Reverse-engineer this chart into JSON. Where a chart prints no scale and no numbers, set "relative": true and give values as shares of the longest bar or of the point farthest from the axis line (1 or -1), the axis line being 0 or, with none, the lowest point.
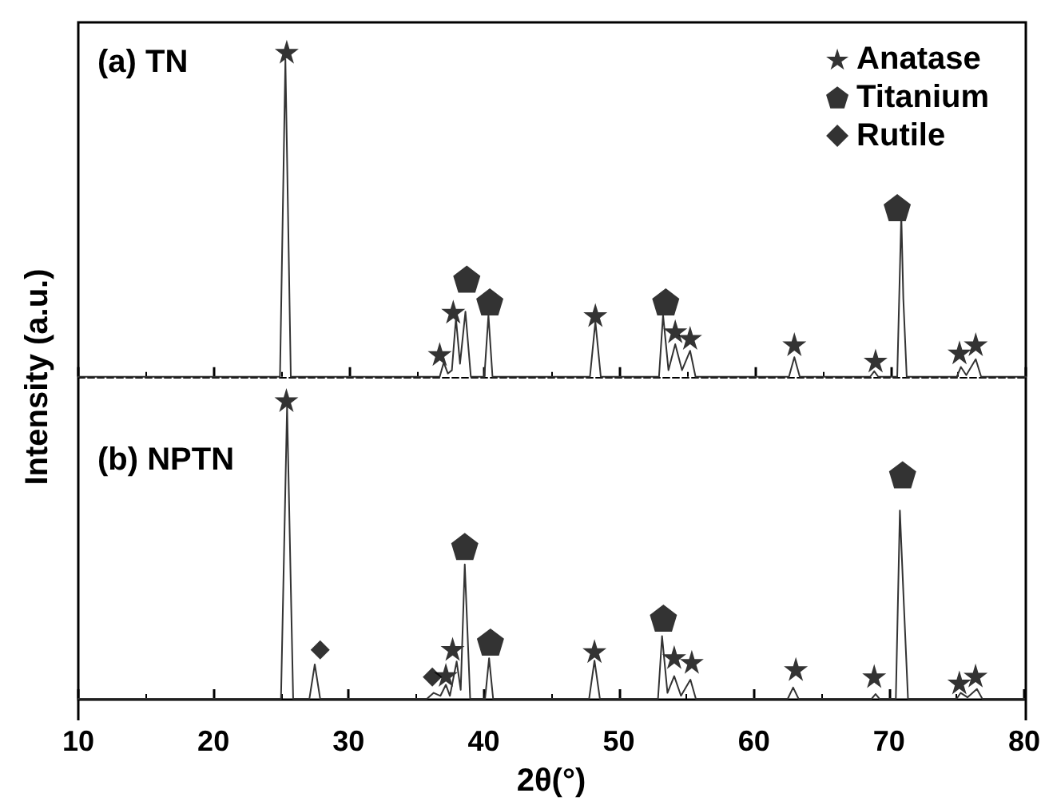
{
  "chart_data": [
    {
      "type": "line",
      "title": "(a) TN",
      "relative": true,
      "xlim": [
        10,
        80
      ],
      "xticks": [
        10,
        20,
        30,
        40,
        50,
        60,
        70,
        80
      ],
      "tick_labels": false,
      "legend": "top right",
      "grid": false,
      "series": [
        {
          "type": "line",
          "color": "#333333",
          "marker": "none",
          "x": [
            10,
            24.9,
            25.3,
            25.7,
            36.7,
            37.0,
            37.3,
            37.6,
            37.9,
            38.2,
            38.6,
            39.0,
            40.0,
            40.3,
            40.6,
            47.8,
            48.2,
            48.6,
            52.9,
            53.2,
            53.6,
            54.1,
            54.6,
            55.2,
            55.6,
            62.5,
            62.9,
            63.3,
            68.5,
            68.8,
            69.1,
            70.5,
            70.8,
            70.95,
            71.2,
            74.9,
            75.2,
            75.6,
            76.3,
            76.7,
            80
          ],
          "values": [
            0,
            0,
            0.975,
            0,
            0,
            0.044,
            0.01,
            0.02,
            0.18,
            0.04,
            0.2,
            0,
            0,
            0.19,
            0,
            0,
            0.17,
            0,
            0,
            0.19,
            0.02,
            0.1,
            0.02,
            0.08,
            0,
            0,
            0.06,
            0,
            0,
            0.017,
            0,
            0,
            0.5,
            0.24,
            0,
            0,
            0.03,
            0.005,
            0.054,
            0,
            0
          ]
        },
        {
          "type": "scatter",
          "name": "Anatase",
          "color": "#000000",
          "marker": "star",
          "x": [
            25.4,
            36.7,
            37.7,
            48.2,
            54.1,
            55.2,
            62.9,
            68.9,
            75.1,
            76.3
          ],
          "values": [
            1.0,
            0.07,
            0.2,
            0.19,
            0.14,
            0.12,
            0.1,
            0.05,
            0.075,
            0.1
          ]
        },
        {
          "type": "scatter",
          "name": "Titanium",
          "color": "#000000",
          "x": [
            38.7,
            40.4,
            53.4,
            70.5
          ],
          "values": [
            0.3,
            0.23,
            0.23,
            0.52
          ]
        },
        {
          "type": "scatter",
          "name": "Rutile",
          "color": "#000000",
          "marker": "diamond"
        }
      ]
    },
    {
      "type": "line",
      "title": "(b) NPTN",
      "relative": true,
      "xlabel": "2θ(°)",
      "ylabel": "Intensity (a.u.)",
      "xlim": [
        10,
        80
      ],
      "xticks": [
        10,
        20,
        30,
        40,
        50,
        60,
        70,
        80
      ],
      "tick_labels": "x",
      "legend": false,
      "grid": false,
      "series": [
        {
          "type": "line",
          "color": "#333333",
          "marker": "none",
          "x": [
            10,
            25.0,
            25.45,
            25.9,
            27.1,
            27.5,
            27.9,
            35.8,
            36.3,
            36.8,
            37.2,
            37.5,
            38.0,
            38.3,
            38.6,
            39.0,
            40.1,
            40.4,
            40.7,
            47.8,
            48.2,
            48.6,
            52.9,
            53.2,
            53.6,
            54.1,
            54.6,
            55.3,
            55.7,
            62.5,
            62.9,
            63.3,
            68.7,
            69.0,
            69.3,
            70.5,
            70.8,
            71.1,
            71.4,
            75.0,
            75.3,
            75.8,
            76.5,
            76.9,
            80
          ],
          "values": [
            0,
            0,
            0.98,
            0,
            0,
            0.115,
            0,
            0,
            0.02,
            0.01,
            0.047,
            0.01,
            0.125,
            0.03,
            0.45,
            0,
            0,
            0.136,
            0,
            0,
            0.128,
            0,
            0,
            0.21,
            0.02,
            0.076,
            0.01,
            0.064,
            0,
            0,
            0.038,
            0,
            0,
            0.016,
            0,
            0,
            0.63,
            0.31,
            0,
            0,
            0.02,
            0.005,
            0.033,
            0,
            0
          ]
        },
        {
          "type": "scatter",
          "color": "#000000",
          "marker": "star",
          "x": [
            25.4,
            37.2,
            37.7,
            48.2,
            54.1,
            55.4,
            63.1,
            68.9,
            75.2,
            76.4
          ],
          "values": [
            1.0,
            0.08,
            0.167,
            0.16,
            0.14,
            0.124,
            0.1,
            0.076,
            0.055,
            0.078
          ]
        },
        {
          "type": "scatter",
          "color": "#000000",
          "x": [
            38.6,
            40.5,
            53.3,
            71.0
          ],
          "values": [
            0.51,
            0.19,
            0.27,
            0.75
          ]
        },
        {
          "type": "scatter",
          "color": "#000000",
          "marker": "diamond",
          "x": [
            27.9,
            36.2
          ],
          "values": [
            0.164,
            0.073
          ]
        }
      ]
    }
  ]
}
